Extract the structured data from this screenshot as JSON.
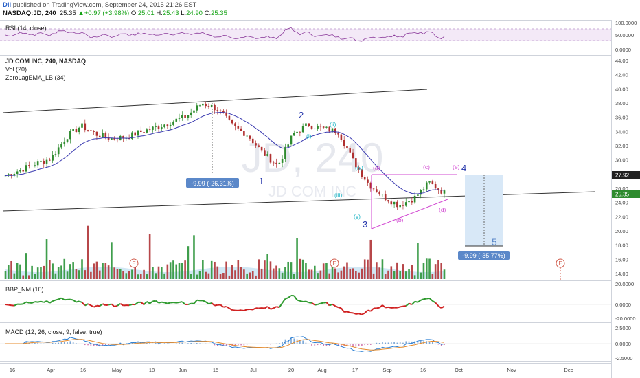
{
  "header": {
    "logo": "DII",
    "published": "published on TradingView.com, September 24, 2015 21:26 EST",
    "symbol": "NASDAQ:JD, 240",
    "last": "25.35",
    "change": "+0.97 (+3.98%)",
    "o_label": "O:",
    "o": "25.01",
    "h_label": "H:",
    "h": "25.43",
    "l_label": "L:",
    "l": "24.90",
    "c_label": "C:",
    "c": "25.35"
  },
  "watermark": {
    "big": "JD, 240",
    "small": "JD COM INC"
  },
  "panes": {
    "rsi": {
      "label": "RSI (14, close)",
      "ticks": [
        "100.0000",
        "50.0000",
        "0.0000"
      ]
    },
    "main": {
      "title": "JD COM INC, 240, NASDAQ",
      "indicators": [
        "Vol (20)",
        "ZeroLagEMA_LB (34)"
      ],
      "ticks": [
        "44.00",
        "42.00",
        "40.00",
        "38.00",
        "36.00",
        "34.00",
        "32.00",
        "30.00",
        "28.00",
        "26.00",
        "24.00",
        "22.00",
        "20.00",
        "18.00",
        "16.00",
        "14.00"
      ],
      "price_tag_level": "27.92",
      "price_tag_last": "25.35"
    },
    "bbp": {
      "label": "BBP_NM (10)",
      "ticks": [
        "20.0000",
        "0.0000",
        "-20.0000"
      ]
    },
    "macd": {
      "label": "MACD (12, 26, close, 9, false, true)",
      "ticks": [
        "2.5000",
        "0.0000",
        "-2.5000"
      ]
    }
  },
  "annotations": {
    "wave_1": "1",
    "wave_2": "2",
    "wave_3": "3",
    "wave_4": "4",
    "wave_5": "5",
    "sub_i": "(i)",
    "sub_ii": "(ii)",
    "sub_iii": "(iii)",
    "sub_iv": "(iv)",
    "sub_v": "(v)",
    "tri_a": "(a)",
    "tri_b": "(b)",
    "tri_c": "(c)",
    "tri_d": "(d)",
    "tri_e": "(e)",
    "measure_1": "-9.99 (-26.31%)",
    "measure_2": "-9.99 (-35.77%)",
    "earnings": "E"
  },
  "x_axis": [
    "16",
    "Apr",
    "16",
    "May",
    "18",
    "Jun",
    "15",
    "Jul",
    "20",
    "Aug",
    "17",
    "Sep",
    "16",
    "Oct",
    "Nov",
    "Dec"
  ],
  "colors": {
    "candle_up": "#2e8b2e",
    "candle_down": "#b03030",
    "ema": "#3a3ab0",
    "rsi": "#8b3a9b",
    "rsi_band": "#efe3f5",
    "bbp_pos": "#2e9a2e",
    "bbp_neg": "#d02020",
    "macd": "#2a7fd4",
    "signal": "#e58a2a",
    "triangle": "#d24ad2",
    "wave": "#2233aa",
    "sub_wave": "#22b6c6",
    "box": "#d8e8f7",
    "measure": "#5b88c9"
  },
  "chart_data": {
    "type": "line",
    "title": "JD COM INC, 240, NASDAQ",
    "price_series": {
      "name": "JD",
      "x": [
        "2015-03-05",
        "2015-03-12",
        "2015-03-19",
        "2015-03-26",
        "2015-04-02",
        "2015-04-09",
        "2015-04-16",
        "2015-04-23",
        "2015-04-30",
        "2015-05-07",
        "2015-05-14",
        "2015-05-21",
        "2015-05-28",
        "2015-06-04",
        "2015-06-11",
        "2015-06-18",
        "2015-06-25",
        "2015-07-02",
        "2015-07-09",
        "2015-07-16",
        "2015-07-23",
        "2015-07-30",
        "2015-08-06",
        "2015-08-13",
        "2015-08-20",
        "2015-08-27",
        "2015-09-03",
        "2015-09-10",
        "2015-09-17",
        "2015-09-24"
      ],
      "values": [
        27.8,
        28.6,
        29.5,
        30.2,
        33.2,
        34.8,
        33.6,
        33.0,
        33.2,
        34.0,
        34.6,
        35.4,
        36.2,
        38.0,
        37.2,
        34.8,
        33.5,
        31.0,
        29.2,
        33.6,
        35.0,
        34.4,
        34.0,
        29.8,
        26.6,
        24.8,
        23.6,
        24.6,
        26.8,
        25.35
      ]
    },
    "levels": {
      "horizontal_line": 27.92,
      "last": 25.35
    },
    "y_range": [
      13,
      45
    ]
  }
}
